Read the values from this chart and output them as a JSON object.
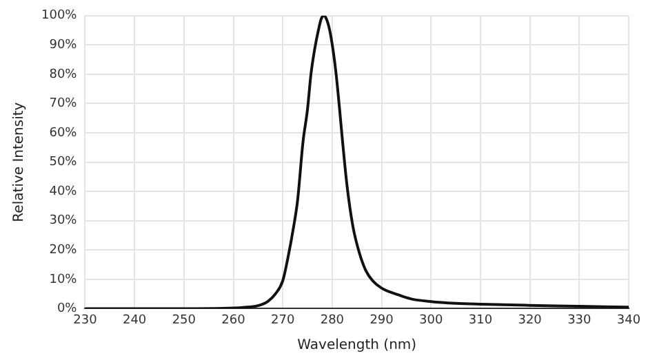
{
  "chart_data": {
    "type": "line",
    "xlabel": "Wavelength (nm)",
    "ylabel": "Relative Intensity",
    "x": [
      230,
      250,
      258,
      262,
      265,
      267,
      268.5,
      270,
      271,
      272.2,
      273,
      274.1,
      275,
      275.7,
      276.5,
      277.2,
      277.8,
      278.3,
      278.8,
      279.5,
      280.2,
      280.8,
      281.5,
      282.1,
      283,
      284.2,
      285.5,
      286.8,
      288.2,
      290,
      293.4,
      296,
      300,
      305,
      310,
      320,
      330,
      340
    ],
    "values": [
      0,
      0,
      0.1,
      0.4,
      1,
      2.5,
      5,
      9.5,
      17,
      28,
      37,
      57,
      68,
      80,
      89,
      95,
      99,
      100,
      99,
      95,
      88,
      80,
      68,
      57,
      42,
      28,
      19,
      13,
      9.5,
      7,
      4.7,
      3.3,
      2.4,
      1.8,
      1.5,
      1.1,
      0.8,
      0.5
    ],
    "color": "#111111",
    "xlim": [
      230,
      340
    ],
    "xticks": [
      230,
      240,
      250,
      260,
      270,
      280,
      290,
      300,
      310,
      320,
      330,
      340
    ],
    "ylim": [
      0,
      100
    ],
    "yticks": [
      {
        "value": 0,
        "label": "0%"
      },
      {
        "value": 10,
        "label": "10%"
      },
      {
        "value": 20,
        "label": "20%"
      },
      {
        "value": 30,
        "label": "30%"
      },
      {
        "value": 40,
        "label": "40%"
      },
      {
        "value": 50,
        "label": "50%"
      },
      {
        "value": 60,
        "label": "60%"
      },
      {
        "value": 70,
        "label": "70%"
      },
      {
        "value": 80,
        "label": "80%"
      },
      {
        "value": 90,
        "label": "90%"
      },
      {
        "value": 100,
        "label": "100%"
      }
    ],
    "grid": true,
    "marker": "none",
    "line_style": "solid",
    "legend": false
  }
}
